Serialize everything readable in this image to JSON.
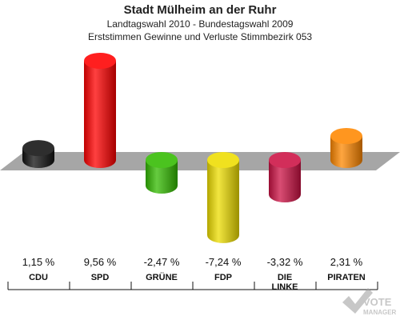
{
  "header": {
    "title": "Stadt Mülheim an der Ruhr",
    "subtitle": "Landtagswahl 2010 - Bundestagswahl 2009",
    "description": "Erststimmen Gewinne und Verluste Stimmbezirk 053"
  },
  "chart_data": {
    "type": "bar",
    "categories": [
      "CDU",
      "SPD",
      "GRÜNE",
      "FDP",
      "DIE LINKE",
      "PIRATEN"
    ],
    "category_lines": [
      [
        "CDU"
      ],
      [
        "SPD"
      ],
      [
        "GRÜNE"
      ],
      [
        "FDP"
      ],
      [
        "DIE",
        "LINKE"
      ],
      [
        "PIRATEN"
      ]
    ],
    "values": [
      1.15,
      9.56,
      -2.47,
      -7.24,
      -3.32,
      2.31
    ],
    "value_labels": [
      "1,15 %",
      "9,56 %",
      "-2,47 %",
      "-7,24 %",
      "-3,32 %",
      "2,31 %"
    ],
    "colors": [
      "#111111",
      "#ff0000",
      "#33bb00",
      "#eedd00",
      "#cc1144",
      "#ff8800"
    ],
    "baseline": 0
  },
  "watermark": {
    "line1": "VOTE",
    "line2": "MANAGER"
  }
}
